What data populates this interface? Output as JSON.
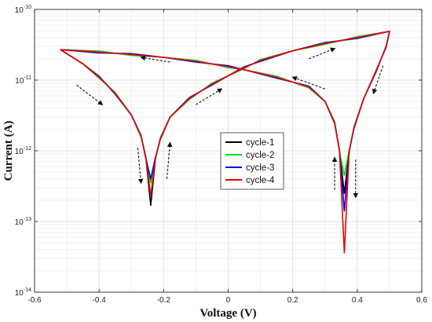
{
  "chart_data": {
    "type": "line",
    "xlabel": "Voltage (V)",
    "ylabel": "Current (A)",
    "xlim": [
      -0.6,
      0.6
    ],
    "ylim": [
      1e-14,
      1e-10
    ],
    "y_scale": "log",
    "grid": true,
    "legend_position": "center",
    "x_ticks": [
      {
        "value": -0.6,
        "label": "-0.6"
      },
      {
        "value": -0.4,
        "label": "-0.4"
      },
      {
        "value": -0.2,
        "label": "-0.2"
      },
      {
        "value": 0,
        "label": "0"
      },
      {
        "value": 0.2,
        "label": "0.2"
      },
      {
        "value": 0.4,
        "label": "0.4"
      },
      {
        "value": 0.6,
        "label": "0.6"
      }
    ],
    "y_ticks": [
      {
        "value": 1e-14,
        "base": "10",
        "exponent": "-14"
      },
      {
        "value": 1e-13,
        "base": "10",
        "exponent": "-13"
      },
      {
        "value": 1e-12,
        "base": "10",
        "exponent": "-12"
      },
      {
        "value": 1e-11,
        "base": "10",
        "exponent": "-11"
      },
      {
        "value": 1e-10,
        "base": "10",
        "exponent": "-10"
      }
    ],
    "base_loop": [
      [
        -0.52,
        2.7e-11
      ],
      [
        -0.45,
        1.7e-11
      ],
      [
        -0.4,
        1.1e-11
      ],
      [
        -0.35,
        6.5e-12
      ],
      [
        -0.3,
        3.2e-12
      ],
      [
        -0.27,
        1.6e-12
      ],
      [
        -0.255,
        8e-13
      ],
      [
        -0.24,
        3e-13
      ],
      [
        -0.225,
        8e-13
      ],
      [
        -0.21,
        1.5e-12
      ],
      [
        -0.18,
        3e-12
      ],
      [
        -0.12,
        5.5e-12
      ],
      [
        -0.05,
        8.8e-12
      ],
      [
        0.0,
        1.15e-11
      ],
      [
        0.05,
        1.5e-11
      ],
      [
        0.1,
        1.9e-11
      ],
      [
        0.2,
        2.6e-11
      ],
      [
        0.3,
        3.3e-11
      ],
      [
        0.4,
        4e-11
      ],
      [
        0.5,
        4.9e-11
      ],
      [
        0.49,
        3e-11
      ],
      [
        0.46,
        1.4e-11
      ],
      [
        0.42,
        5.5e-12
      ],
      [
        0.39,
        2.1e-12
      ],
      [
        0.375,
        1e-12
      ],
      [
        0.36,
        4e-13
      ],
      [
        0.345,
        1e-12
      ],
      [
        0.33,
        2.5e-12
      ],
      [
        0.3,
        5e-12
      ],
      [
        0.25,
        8e-12
      ],
      [
        0.15,
        1.1e-11
      ],
      [
        0.05,
        1.4e-11
      ],
      [
        0.0,
        1.55e-11
      ],
      [
        -0.1,
        1.85e-11
      ],
      [
        -0.2,
        2.1e-11
      ],
      [
        -0.3,
        2.3e-11
      ],
      [
        -0.4,
        2.5e-11
      ],
      [
        -0.52,
        2.7e-11
      ]
    ],
    "series": [
      {
        "name": "cycle-1",
        "color": "#000000",
        "width": 1.6,
        "min_left": 1.7e-13,
        "min_right": 2.5e-13,
        "jitter": 1.0
      },
      {
        "name": "cycle-2",
        "color": "#00dd00",
        "width": 1.6,
        "min_left": 3.5e-13,
        "min_right": 4.5e-13,
        "jitter": 0.97
      },
      {
        "name": "cycle-3",
        "color": "#0000ee",
        "width": 1.6,
        "min_left": 4e-13,
        "min_right": 1.4e-13,
        "jitter": 1.03
      },
      {
        "name": "cycle-4",
        "color": "#ee0000",
        "width": 1.6,
        "min_left": 2.3e-13,
        "min_right": 3.6e-14,
        "jitter": 1.0
      }
    ],
    "arrows": [
      {
        "from": [
          -0.18,
          1.8e-11
        ],
        "to": [
          -0.27,
          2.1e-11
        ]
      },
      {
        "from": [
          -0.47,
          8.5e-12
        ],
        "to": [
          -0.39,
          4.5e-12
        ]
      },
      {
        "from": [
          -0.28,
          1.1e-12
        ],
        "to": [
          -0.27,
          3.5e-13
        ]
      },
      {
        "from": [
          -0.19,
          4e-13
        ],
        "to": [
          -0.18,
          1.3e-12
        ]
      },
      {
        "from": [
          -0.1,
          4.5e-12
        ],
        "to": [
          -0.02,
          7.5e-12
        ]
      },
      {
        "from": [
          0.25,
          2e-11
        ],
        "to": [
          0.33,
          2.8e-11
        ]
      },
      {
        "from": [
          0.48,
          1.6e-11
        ],
        "to": [
          0.45,
          6.5e-12
        ]
      },
      {
        "from": [
          0.3,
          7.5e-12
        ],
        "to": [
          0.2,
          1.1e-11
        ]
      },
      {
        "from": [
          0.33,
          2.8e-13
        ],
        "to": [
          0.33,
          8e-13
        ]
      },
      {
        "from": [
          0.395,
          7.5e-13
        ],
        "to": [
          0.395,
          2.2e-13
        ]
      }
    ]
  }
}
